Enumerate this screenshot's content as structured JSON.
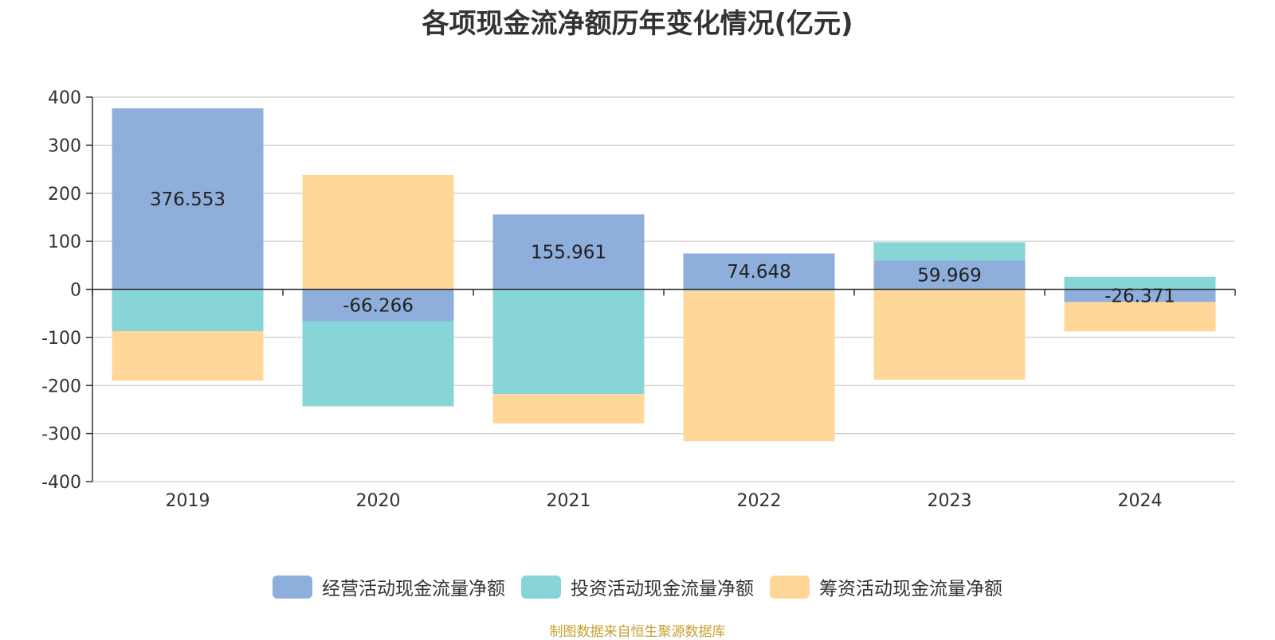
{
  "colors": {
    "operating": "#8eaedb",
    "investing": "#88d5d8",
    "financing": "#ffd899",
    "axis": "#333333",
    "grid": "#cccccc",
    "source": "#c8a032"
  },
  "source_note": "制图数据来自恒生聚源数据库",
  "chart_data": {
    "type": "bar",
    "stacked": true,
    "title": "各项现金流净额历年变化情况(亿元)",
    "categories": [
      "2019",
      "2020",
      "2021",
      "2022",
      "2023",
      "2024"
    ],
    "series": [
      {
        "name": "经营活动现金流量净额",
        "color_key": "operating",
        "values": [
          376.553,
          -66.266,
          155.961,
          74.648,
          59.969,
          -26.371
        ]
      },
      {
        "name": "投资活动现金流量净额",
        "color_key": "investing",
        "values": [
          -87,
          -177,
          -218,
          -3,
          38,
          26
        ]
      },
      {
        "name": "筹资活动现金流量净额",
        "color_key": "financing",
        "values": [
          -103,
          238,
          -61,
          -313,
          -188,
          -61
        ]
      }
    ],
    "data_labels_series": 0,
    "data_labels": [
      "376.553",
      "-66.266",
      "155.961",
      "74.648",
      "59.969",
      "-26.371"
    ],
    "ylim": [
      -400,
      400
    ],
    "yticks": [
      400,
      300,
      200,
      100,
      0,
      -100,
      -200,
      -300,
      -400
    ],
    "grid": true,
    "legend_position": "bottom"
  }
}
